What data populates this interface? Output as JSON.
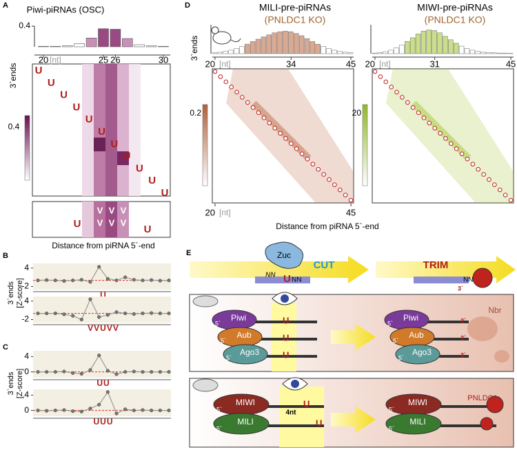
{
  "panels": {
    "A": {
      "label": "A",
      "title": "Piwi-piRNAs (OSC)",
      "y_label": "3`ends",
      "hist": {
        "values": [
          0.01,
          0.01,
          0.02,
          0.06,
          0.17,
          0.35,
          0.34,
          0.16,
          0.04,
          0.02,
          0.01
        ],
        "ylim": [
          0,
          0.4
        ],
        "yticks": [
          0.4
        ]
      },
      "xticks": [
        20,
        25,
        26,
        30
      ],
      "unit": "[nt]",
      "colorbar_tick": 0.4,
      "motif": "U",
      "motif_v": "V",
      "x_label": "Distance from piRNA 5`-end"
    },
    "B": {
      "label": "B",
      "y_label": [
        "3`ends",
        "[Z-score]"
      ],
      "ylim": [
        -3,
        5.5
      ],
      "yticks": [
        4,
        -2
      ],
      "plots": [
        {
          "values": [
            0,
            0.1,
            0,
            -0.2,
            0,
            0.2,
            -0.5,
            4.4,
            0.5,
            0,
            1,
            0.2,
            0,
            0.1,
            -0.1,
            0
          ],
          "motif": "U"
        },
        {
          "values": [
            0,
            0,
            0,
            -0.3,
            -0.8,
            -2,
            4.6,
            -1.2,
            -0.5,
            0.4,
            0,
            -0.2,
            0,
            0.1,
            0,
            0
          ],
          "motif": "VVUVV"
        }
      ]
    },
    "C": {
      "label": "C",
      "y_label": [
        "3`ends",
        "[Z-score]"
      ],
      "ylim": [
        -1.5,
        5.5
      ],
      "yticks": [
        4,
        0
      ],
      "plots": [
        {
          "values": [
            0,
            0,
            0,
            0.1,
            -0.3,
            -0.5,
            0.5,
            4.3,
            0.3,
            -0.6,
            0,
            0.1,
            0,
            0,
            0,
            0
          ],
          "motif": "UU"
        },
        {
          "values": [
            0,
            -0.1,
            0,
            0.1,
            -0.2,
            -0.3,
            0.5,
            1.5,
            4.8,
            -0.8,
            0.3,
            0,
            0.1,
            0,
            0,
            0
          ],
          "motif": "UUU"
        }
      ]
    },
    "D": {
      "label": "D",
      "y_label": "3`ends",
      "x_label": "Distance from piRNA 5`-end",
      "unit": "[nt]",
      "maps": [
        {
          "title": "MILI-pre-piRNAs",
          "subtitle": "(PNLDC1 KO)",
          "color": "#c0704a",
          "xticks": [
            20,
            34,
            45
          ],
          "colorbar_tick": 0.2,
          "hist": {
            "values": [
              0.03,
              0.05,
              0.08,
              0.12,
              0.18,
              0.25,
              0.33,
              0.42,
              0.5,
              0.58,
              0.65,
              0.72,
              0.76,
              0.78,
              0.76,
              0.7,
              0.62,
              0.52,
              0.42,
              0.33,
              0.25,
              0.18,
              0.12,
              0.08,
              0.05,
              0.03
            ],
            "ylim": [
              0,
              1
            ]
          }
        },
        {
          "title": "MIWI-pre-piRNAs",
          "subtitle": "(PNLDC1 KO)",
          "color": "#a8c83c",
          "xticks": [
            20,
            31,
            45
          ],
          "colorbar_tick": 20,
          "hist": {
            "values": [
              0.02,
              0.04,
              0.07,
              0.12,
              0.2,
              0.3,
              0.42,
              0.55,
              0.68,
              0.78,
              0.82,
              0.8,
              0.72,
              0.6,
              0.48,
              0.36,
              0.26,
              0.18,
              0.12,
              0.08,
              0.05,
              0.04,
              0.03,
              0.02,
              0.02,
              0.01
            ],
            "ylim": [
              0,
              1
            ]
          }
        }
      ]
    },
    "E": {
      "label": "E",
      "cut": "CUT",
      "trim": "TRIM",
      "zuc": "Zuc",
      "nn": "NN",
      "u": "U",
      "three": "3`",
      "five": "5`",
      "fly": {
        "proteins": [
          "Piwi",
          "Aub",
          "Ago3"
        ],
        "trimmer": "Nbr"
      },
      "mouse": {
        "proteins": [
          "MIWI",
          "MILI"
        ],
        "gap": "4nt",
        "trimmer": "PNLDC1"
      }
    }
  }
}
